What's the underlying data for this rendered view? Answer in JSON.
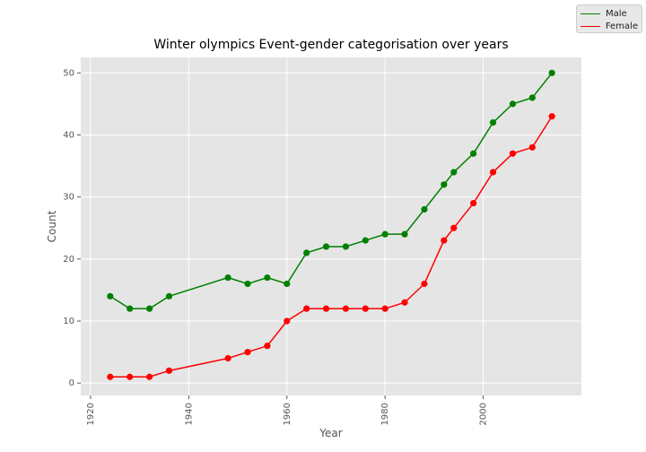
{
  "chart_data": {
    "type": "line",
    "title": "Winter olympics Event-gender categorisation over years",
    "xlabel": "Year",
    "ylabel": "Count",
    "xlim": [
      1918,
      2020
    ],
    "ylim": [
      -2,
      52.5
    ],
    "xticks": [
      1920,
      1940,
      1960,
      1980,
      2000
    ],
    "yticks": [
      0,
      10,
      20,
      30,
      40,
      50
    ],
    "grid": true,
    "legend_position": "top-right",
    "x": [
      1924,
      1928,
      1932,
      1936,
      1948,
      1952,
      1956,
      1960,
      1964,
      1968,
      1972,
      1976,
      1980,
      1984,
      1988,
      1992,
      1994,
      1998,
      2002,
      2006,
      2010,
      2014
    ],
    "series": [
      {
        "name": "Male",
        "color": "#008000",
        "values": [
          14,
          12,
          12,
          14,
          17,
          16,
          17,
          16,
          21,
          22,
          22,
          23,
          24,
          24,
          28,
          32,
          34,
          37,
          42,
          45,
          46,
          50
        ]
      },
      {
        "name": "Female",
        "color": "#ff0000",
        "values": [
          1,
          1,
          1,
          2,
          4,
          5,
          6,
          10,
          12,
          12,
          12,
          12,
          12,
          13,
          16,
          23,
          25,
          29,
          34,
          37,
          38,
          43
        ]
      }
    ]
  }
}
